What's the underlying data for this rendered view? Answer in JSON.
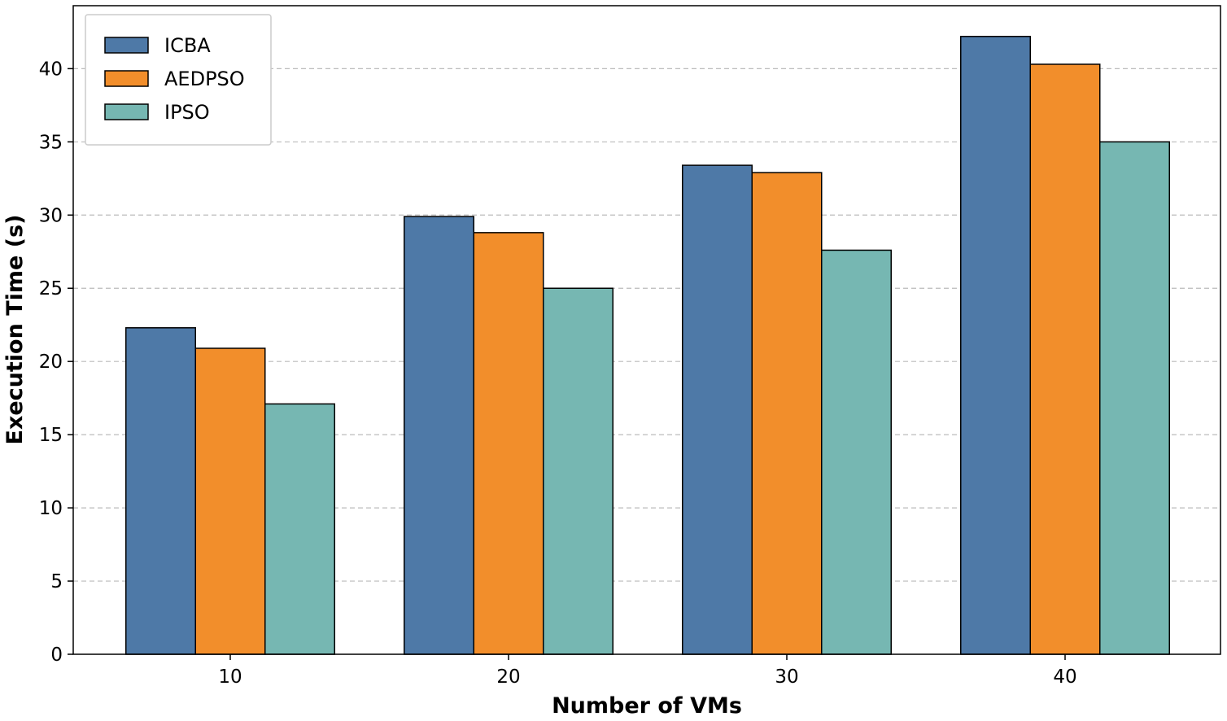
{
  "chart_data": {
    "type": "bar",
    "title": "",
    "xlabel": "Number of VMs",
    "ylabel": "Execution Time (s)",
    "categories": [
      "10",
      "20",
      "30",
      "40"
    ],
    "series": [
      {
        "name": "ICBA",
        "color": "#4e79a7",
        "values": [
          22.3,
          29.9,
          33.4,
          42.2
        ]
      },
      {
        "name": "AEDPSO",
        "color": "#f28e2b",
        "values": [
          20.9,
          28.8,
          32.9,
          40.3
        ]
      },
      {
        "name": "IPSO",
        "color": "#76b7b2",
        "values": [
          17.1,
          25.0,
          27.6,
          35.0
        ]
      }
    ],
    "ylim": [
      0,
      44.3
    ],
    "yticks": [
      "0",
      "5",
      "10",
      "15",
      "20",
      "25",
      "30",
      "35",
      "40"
    ],
    "grid": "y dashed",
    "legend_position": "top-left"
  }
}
